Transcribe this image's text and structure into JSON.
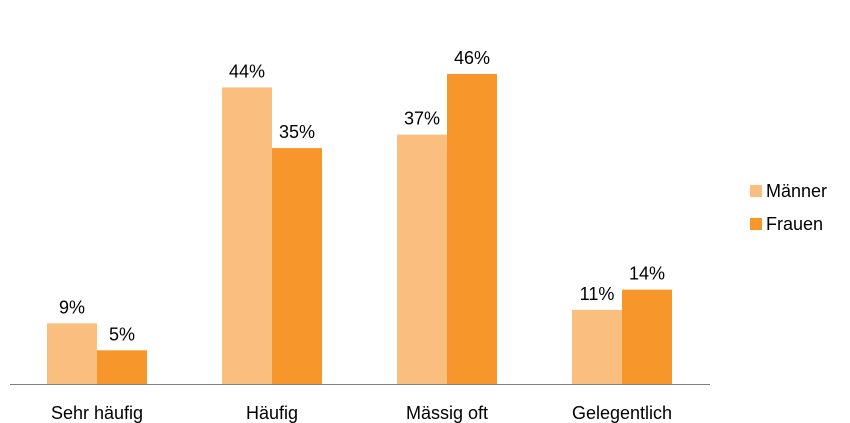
{
  "chart_data": {
    "type": "bar",
    "categories": [
      "Sehr häufig",
      "Häufig",
      "Mässig oft",
      "Gelegentlich"
    ],
    "series": [
      {
        "name": "Männer",
        "values": [
          9,
          44,
          37,
          11
        ],
        "labels": [
          "9%",
          "44%",
          "37%",
          "11%"
        ],
        "color": "#FABF7F"
      },
      {
        "name": "Frauen",
        "values": [
          5,
          35,
          46,
          14
        ],
        "labels": [
          "5%",
          "35%",
          "46%",
          "14%"
        ],
        "color": "#F7962B"
      }
    ],
    "ylim": [
      0,
      50
    ],
    "title": "",
    "xlabel": "",
    "ylabel": "",
    "grid": false,
    "legend_position": "right",
    "axis_color": "#808080"
  }
}
